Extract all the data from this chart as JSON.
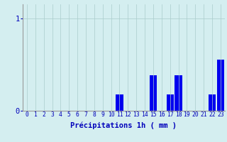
{
  "hours": [
    0,
    1,
    2,
    3,
    4,
    5,
    6,
    7,
    8,
    9,
    10,
    11,
    12,
    13,
    14,
    15,
    16,
    17,
    18,
    19,
    20,
    21,
    22,
    23
  ],
  "values": [
    0,
    0,
    0,
    0,
    0,
    0,
    0,
    0,
    0,
    0,
    0,
    0.18,
    0,
    0,
    0,
    0.38,
    0,
    0.18,
    0.38,
    0,
    0,
    0,
    0.18,
    0.55
  ],
  "bar_color": "#0000ee",
  "background_color": "#d4eef0",
  "grid_color": "#aacccc",
  "axis_label_color": "#0000bb",
  "xlabel": "Précipitations 1h ( mm )",
  "ytick_labels": [
    "0",
    "1"
  ],
  "yticks": [
    0,
    1
  ],
  "ylim": [
    0,
    1.15
  ],
  "xlim": [
    -0.5,
    23.5
  ],
  "tick_color": "#0000bb",
  "xlabel_fontsize": 7.5,
  "ytick_fontsize": 7.5,
  "xtick_fontsize": 5.8
}
